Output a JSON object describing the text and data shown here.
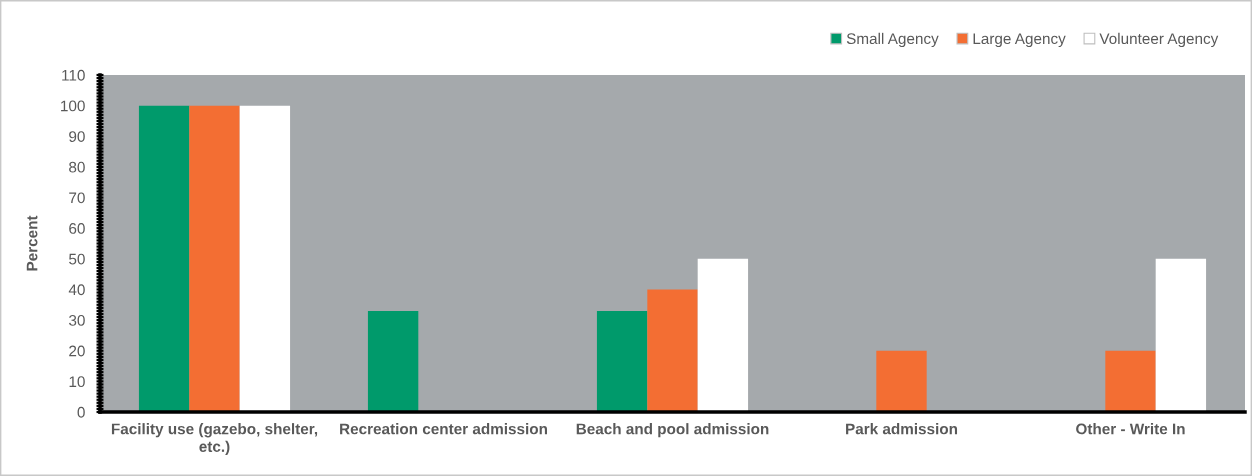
{
  "chart_data": {
    "type": "bar",
    "ylabel": "Percent",
    "categories": [
      "Facility use (gazebo, shelter, etc.)",
      "Recreation center admission",
      "Beach and pool admission",
      "Park admission",
      "Other - Write In"
    ],
    "series": [
      {
        "name": "Small Agency",
        "color": "#009a6b",
        "values": [
          100,
          33,
          33,
          null,
          null
        ]
      },
      {
        "name": "Large Agency",
        "color": "#f36e33",
        "values": [
          100,
          null,
          40,
          20,
          20
        ]
      },
      {
        "name": "Volunteer Agency",
        "color": "#ffffff",
        "values": [
          100,
          null,
          50,
          null,
          50
        ]
      }
    ],
    "ylim": [
      0,
      110
    ],
    "yticks": [
      0,
      10,
      20,
      30,
      40,
      50,
      60,
      70,
      80,
      90,
      100,
      110
    ],
    "grid": false,
    "legend": "top right"
  }
}
